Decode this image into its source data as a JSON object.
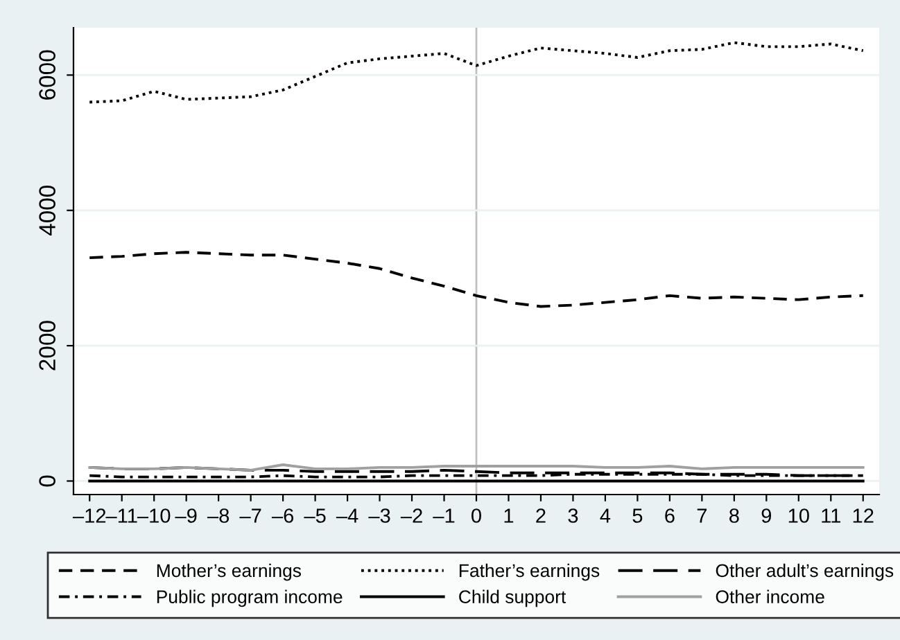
{
  "chart_data": {
    "type": "line",
    "x": [
      -12,
      -11,
      -10,
      -9,
      -8,
      -7,
      -6,
      -5,
      -4,
      -3,
      -2,
      -1,
      0,
      1,
      2,
      3,
      4,
      5,
      6,
      7,
      8,
      9,
      10,
      11,
      12
    ],
    "series": [
      {
        "name": "Mother’s earnings",
        "color": "#000000",
        "line_style": "dashed",
        "values": [
          3300,
          3320,
          3360,
          3380,
          3360,
          3340,
          3340,
          3280,
          3220,
          3140,
          3000,
          2880,
          2740,
          2640,
          2580,
          2600,
          2640,
          2680,
          2740,
          2700,
          2720,
          2700,
          2680,
          2720,
          2740
        ]
      },
      {
        "name": "Father’s earnings",
        "color": "#000000",
        "line_style": "dotted",
        "values": [
          5600,
          5620,
          5760,
          5640,
          5660,
          5680,
          5780,
          5980,
          6180,
          6240,
          6280,
          6320,
          6140,
          6280,
          6400,
          6360,
          6320,
          6260,
          6360,
          6380,
          6480,
          6420,
          6420,
          6460,
          6360
        ]
      },
      {
        "name": "Other adult’s earnings",
        "color": "#000000",
        "line_style": "longdash",
        "values": [
          200,
          180,
          180,
          200,
          180,
          160,
          160,
          140,
          140,
          140,
          140,
          160,
          140,
          120,
          120,
          120,
          120,
          120,
          120,
          100,
          100,
          100,
          80,
          80,
          80
        ]
      },
      {
        "name": "Public program income",
        "color": "#000000",
        "line_style": "dashdot",
        "values": [
          80,
          60,
          60,
          60,
          60,
          60,
          80,
          60,
          60,
          60,
          80,
          80,
          80,
          80,
          80,
          100,
          100,
          100,
          100,
          100,
          80,
          80,
          80,
          80,
          80
        ]
      },
      {
        "name": "Child support",
        "color": "#000000",
        "line_style": "solid",
        "values": [
          0,
          0,
          0,
          0,
          0,
          0,
          0,
          0,
          0,
          0,
          0,
          0,
          0,
          0,
          0,
          0,
          0,
          0,
          0,
          0,
          0,
          0,
          0,
          0,
          0
        ]
      },
      {
        "name": "Other income",
        "color": "#a0a0a0",
        "line_style": "solid",
        "values": [
          200,
          180,
          180,
          200,
          180,
          160,
          240,
          180,
          180,
          200,
          200,
          220,
          220,
          220,
          220,
          220,
          200,
          200,
          220,
          180,
          200,
          200,
          200,
          200,
          200
        ]
      }
    ],
    "xlim": [
      -12.5,
      12.5
    ],
    "xticks": [
      {
        "value": -12,
        "label": "–12"
      },
      {
        "value": -11,
        "label": "–11"
      },
      {
        "value": -10,
        "label": "–10"
      },
      {
        "value": -9,
        "label": "–9"
      },
      {
        "value": -8,
        "label": "–8"
      },
      {
        "value": -7,
        "label": "–7"
      },
      {
        "value": -6,
        "label": "–6"
      },
      {
        "value": -5,
        "label": "–5"
      },
      {
        "value": -4,
        "label": "–4"
      },
      {
        "value": -3,
        "label": "–3"
      },
      {
        "value": -2,
        "label": "–2"
      },
      {
        "value": -1,
        "label": "–1"
      },
      0,
      1,
      2,
      3,
      4,
      5,
      6,
      7,
      8,
      9,
      10,
      11,
      12
    ],
    "ylim": [
      -200,
      6700
    ],
    "yticks": [
      0,
      2000,
      4000,
      6000
    ],
    "grid": "y",
    "ref_lines": [
      {
        "axis": "x",
        "value": 0,
        "color": "#c0c0c0"
      }
    ],
    "legend": "bottom",
    "marker": "none"
  }
}
